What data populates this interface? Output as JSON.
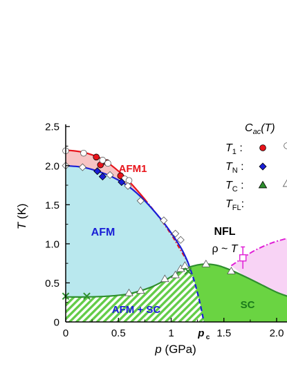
{
  "chart_data": {
    "type": "scatter",
    "title": "",
    "xlabel_var": "p",
    "xlabel_unit": "(GPa)",
    "ylabel_var": "T",
    "ylabel_unit": "(K)",
    "xlim": [
      0,
      2.1
    ],
    "ylim": [
      0,
      2.7
    ],
    "xticks": [
      "0",
      "0.5",
      "1",
      "1.5",
      "2.0"
    ],
    "yticks": [
      "0",
      "0.5",
      "1.0",
      "1.5",
      "2.0",
      "2.5"
    ],
    "pc_label": "p",
    "pc_sub": "c",
    "pc_value": 1.31,
    "region_labels": {
      "afm1": "AFM1",
      "afm": "AFM",
      "afm_sc": "AFM + SC",
      "sc": "SC",
      "nfl": "NFL",
      "rho_prefix": "ρ ~ ",
      "rho_var": "T"
    },
    "legend": {
      "header_prefix": "C",
      "header_sub": "ac",
      "header_arg": "(T)",
      "entries": [
        {
          "var": "T",
          "sub": "1",
          "suffix": " :",
          "marker": "circle",
          "color": "#e8141b"
        },
        {
          "var": "T",
          "sub": "N",
          "suffix": " :",
          "marker": "diamond",
          "color": "#1a1fd6"
        },
        {
          "var": "T",
          "sub": "C",
          "suffix": " :",
          "marker": "triangle",
          "color": "#2e8f2e"
        },
        {
          "var": "T",
          "sub": "FL",
          "suffix": ":",
          "marker": "none",
          "color": "#000000"
        }
      ]
    },
    "series": [
      {
        "name": "T1",
        "marker": "circle",
        "filled": true,
        "color": "#e8141b",
        "x": [
          0.29,
          0.33,
          0.39,
          0.52
        ],
        "y": [
          2.11,
          2.01,
          2.04,
          1.87
        ]
      },
      {
        "name": "T1",
        "marker": "circle",
        "filled": false,
        "color": "#e8141b",
        "x": [
          0.0,
          0.17,
          0.35,
          0.4,
          0.56,
          0.6
        ],
        "y": [
          2.19,
          2.16,
          2.07,
          2.03,
          1.83,
          1.81
        ]
      },
      {
        "name": "TN",
        "marker": "diamond",
        "filled": true,
        "color": "#1a1fd6",
        "x": [
          0.3,
          0.35,
          0.53
        ],
        "y": [
          1.93,
          1.86,
          1.79
        ]
      },
      {
        "name": "TN",
        "marker": "diamond",
        "filled": false,
        "color": "#1a1fd6",
        "x": [
          0.0,
          0.16,
          0.42,
          0.59,
          0.71,
          0.93,
          1.04,
          1.09
        ],
        "y": [
          2.0,
          1.98,
          1.88,
          1.74,
          1.55,
          1.3,
          1.13,
          1.05
        ]
      },
      {
        "name": "TC",
        "marker": "triangle",
        "filled": false,
        "color": "#2e8f2e",
        "x": [
          0.6,
          0.71,
          0.94,
          1.04,
          1.09,
          1.13,
          1.33,
          1.57
        ],
        "y": [
          0.37,
          0.4,
          0.55,
          0.6,
          0.68,
          0.72,
          0.74,
          0.65
        ]
      },
      {
        "name": "TC",
        "marker": "cross",
        "filled": false,
        "color": "#2e8f2e",
        "x": [
          0.0,
          0.2,
          1.16
        ],
        "y": [
          0.33,
          0.33,
          0.65
        ]
      },
      {
        "name": "TFL",
        "marker": "square",
        "filled": false,
        "color": "#e01ed6",
        "x": [
          1.68
        ],
        "y": [
          0.82
        ],
        "yerr": [
          0.14
        ]
      }
    ],
    "boundaries": {
      "T1": {
        "color": "#e8141b",
        "x": [
          0.0,
          0.17,
          0.35,
          0.5,
          0.62,
          0.75,
          0.88,
          1.0,
          1.08,
          1.16
        ],
        "y": [
          2.2,
          2.17,
          2.08,
          1.93,
          1.77,
          1.57,
          1.35,
          1.12,
          0.94,
          0.76
        ]
      },
      "TN": {
        "color": "#1a1fd6",
        "x": [
          0.0,
          0.16,
          0.3,
          0.45,
          0.6,
          0.75,
          0.9,
          1.0,
          1.1,
          1.16
        ],
        "y": [
          2.0,
          1.98,
          1.93,
          1.85,
          1.73,
          1.55,
          1.32,
          1.14,
          0.93,
          0.76
        ]
      },
      "TN_dashed": {
        "color": "#1a1fd6",
        "x": [
          1.16,
          1.22,
          1.27,
          1.31
        ],
        "y": [
          0.76,
          0.52,
          0.26,
          0.0
        ]
      },
      "TC": {
        "color": "#2e8f2e",
        "x": [
          0.0,
          0.2,
          0.4,
          0.6,
          0.8,
          0.95,
          1.05,
          1.15,
          1.25,
          1.35,
          1.45,
          1.57,
          1.7,
          1.85,
          2.0,
          2.1
        ],
        "y": [
          0.32,
          0.32,
          0.33,
          0.36,
          0.44,
          0.54,
          0.62,
          0.69,
          0.73,
          0.74,
          0.72,
          0.66,
          0.58,
          0.48,
          0.38,
          0.33
        ]
      },
      "TFL": {
        "color": "#e01ed6",
        "x": [
          1.57,
          1.68,
          1.8,
          1.95,
          2.1
        ],
        "y": [
          0.72,
          0.82,
          0.92,
          1.01,
          1.07
        ]
      }
    },
    "fills": {
      "afm1": "#f7c4c4",
      "afm": "#b9e8ee",
      "afm_sc_hatch": "#63cc48",
      "sc": "#6ad442",
      "tfl_region": "#f8d3f5"
    }
  }
}
